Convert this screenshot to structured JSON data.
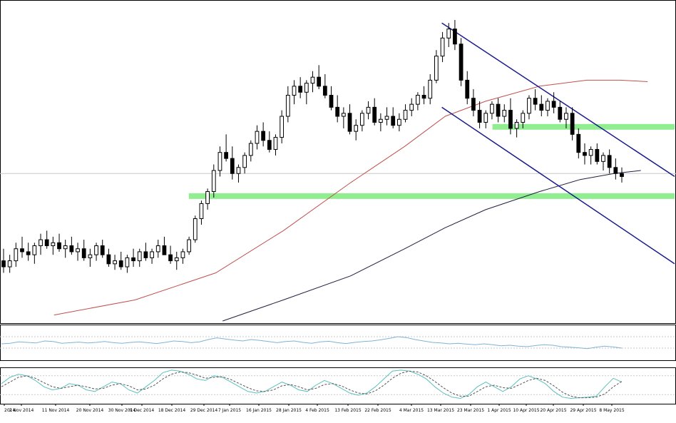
{
  "colors": {
    "background": "#ffffff",
    "frame": "#000000",
    "candle_bull": "#ffffff",
    "candle_bear": "#000000",
    "ma_fast": "#c0504d",
    "ma_slow": "#202040",
    "channel": "#1a1a8c",
    "zone": "#90ee90",
    "price_line": "#c8c8c8",
    "rsi": "#7fb3d5",
    "stoch_main": "#5bc0be",
    "stoch_signal": "#555555",
    "level": "#c8c8c8"
  },
  "chart_data": [
    {
      "type": "candlestick",
      "title": "",
      "x_ticks": [
        "2014",
        "2 Nov 2014",
        "11 Nov 2014",
        "20 Nov 2014",
        "30 Nov 2014",
        "9 Dec 2014",
        "18 Dec 2014",
        "29 Dec 2014",
        "7 Jan 2015",
        "16 Jan 2015",
        "28 Jan 2015",
        "4 Feb 2015",
        "13 Feb 2015",
        "22 Feb 2015",
        "4 Mar 2015",
        "13 Mar 2015",
        "23 Mar 2015",
        "1 Apr 2015",
        "10 Apr 2015",
        "20 Apr 2015",
        "29 Apr 2015",
        "8 May 2015"
      ],
      "y_range": [
        0,
        100
      ],
      "ohlc": [
        [
          20,
          24,
          16,
          18
        ],
        [
          18,
          22,
          16,
          20
        ],
        [
          20,
          26,
          18,
          24
        ],
        [
          24,
          28,
          21,
          23
        ],
        [
          23,
          26,
          20,
          22
        ],
        [
          22,
          26,
          19,
          25
        ],
        [
          25,
          29,
          22,
          27
        ],
        [
          27,
          30,
          24,
          25
        ],
        [
          25,
          28,
          22,
          26
        ],
        [
          26,
          29,
          23,
          24
        ],
        [
          24,
          27,
          21,
          25
        ],
        [
          25,
          28,
          22,
          23
        ],
        [
          23,
          26,
          20,
          24
        ],
        [
          24,
          27,
          20,
          21
        ],
        [
          21,
          24,
          18,
          22
        ],
        [
          22,
          26,
          20,
          25
        ],
        [
          25,
          27,
          21,
          22
        ],
        [
          22,
          24,
          18,
          19
        ],
        [
          19,
          22,
          17,
          20
        ],
        [
          20,
          23,
          17,
          18
        ],
        [
          18,
          22,
          16,
          21
        ],
        [
          21,
          24,
          18,
          20
        ],
        [
          20,
          24,
          18,
          23
        ],
        [
          23,
          26,
          20,
          21
        ],
        [
          21,
          24,
          19,
          23
        ],
        [
          23,
          27,
          21,
          25
        ],
        [
          25,
          28,
          22,
          22
        ],
        [
          22,
          25,
          19,
          20
        ],
        [
          20,
          23,
          17,
          21
        ],
        [
          21,
          24,
          19,
          23
        ],
        [
          23,
          28,
          22,
          27
        ],
        [
          27,
          35,
          26,
          34
        ],
        [
          34,
          40,
          32,
          39
        ],
        [
          39,
          44,
          37,
          43
        ],
        [
          43,
          52,
          41,
          50
        ],
        [
          50,
          58,
          48,
          56
        ],
        [
          56,
          62,
          53,
          54
        ],
        [
          54,
          58,
          47,
          49
        ],
        [
          49,
          52,
          46,
          51
        ],
        [
          51,
          56,
          49,
          55
        ],
        [
          55,
          60,
          53,
          59
        ],
        [
          59,
          65,
          57,
          63
        ],
        [
          63,
          66,
          58,
          60
        ],
        [
          60,
          63,
          56,
          57
        ],
        [
          57,
          62,
          55,
          61
        ],
        [
          61,
          70,
          59,
          68
        ],
        [
          68,
          78,
          66,
          75
        ],
        [
          75,
          80,
          72,
          78
        ],
        [
          78,
          81,
          74,
          76
        ],
        [
          76,
          80,
          72,
          79
        ],
        [
          79,
          83,
          76,
          81
        ],
        [
          81,
          85,
          77,
          78
        ],
        [
          78,
          82,
          74,
          75
        ],
        [
          75,
          78,
          70,
          71
        ],
        [
          71,
          75,
          66,
          68
        ],
        [
          68,
          71,
          64,
          69
        ],
        [
          69,
          72,
          62,
          63
        ],
        [
          63,
          67,
          60,
          65
        ],
        [
          65,
          70,
          63,
          69
        ],
        [
          69,
          73,
          67,
          71
        ],
        [
          71,
          74,
          65,
          66
        ],
        [
          66,
          69,
          63,
          67
        ],
        [
          67,
          71,
          65,
          68
        ],
        [
          68,
          71,
          64,
          65
        ],
        [
          65,
          69,
          63,
          67
        ],
        [
          67,
          72,
          66,
          70
        ],
        [
          70,
          74,
          68,
          72
        ],
        [
          72,
          76,
          70,
          75
        ],
        [
          75,
          78,
          72,
          74
        ],
        [
          74,
          82,
          72,
          80
        ],
        [
          80,
          90,
          79,
          88
        ],
        [
          88,
          96,
          86,
          94
        ],
        [
          94,
          99,
          91,
          97
        ],
        [
          97,
          100,
          90,
          92
        ],
        [
          92,
          94,
          78,
          80
        ],
        [
          80,
          83,
          72,
          74
        ],
        [
          74,
          77,
          68,
          70
        ],
        [
          70,
          73,
          64,
          66
        ],
        [
          66,
          70,
          64,
          69
        ],
        [
          69,
          73,
          67,
          72
        ],
        [
          72,
          74,
          66,
          68
        ],
        [
          68,
          72,
          66,
          70
        ],
        [
          70,
          74,
          62,
          64
        ],
        [
          64,
          67,
          61,
          66
        ],
        [
          66,
          70,
          64,
          69
        ],
        [
          69,
          75,
          67,
          74
        ],
        [
          74,
          77,
          70,
          72
        ],
        [
          72,
          75,
          68,
          70
        ],
        [
          70,
          74,
          68,
          73
        ],
        [
          73,
          76,
          69,
          71
        ],
        [
          71,
          73,
          66,
          67
        ],
        [
          67,
          71,
          64,
          69
        ],
        [
          69,
          71,
          60,
          62
        ],
        [
          62,
          64,
          54,
          56
        ],
        [
          56,
          59,
          52,
          55
        ],
        [
          55,
          58,
          52,
          57
        ],
        [
          57,
          59,
          52,
          53
        ],
        [
          53,
          56,
          50,
          55
        ],
        [
          55,
          57,
          49,
          51
        ],
        [
          51,
          54,
          47,
          49
        ],
        [
          49,
          51,
          46,
          48
        ]
      ],
      "ma_fast": [
        {
          "x": 0.08,
          "y": 2
        },
        {
          "x": 0.2,
          "y": 7
        },
        {
          "x": 0.32,
          "y": 16
        },
        {
          "x": 0.42,
          "y": 30
        },
        {
          "x": 0.52,
          "y": 46
        },
        {
          "x": 0.6,
          "y": 58
        },
        {
          "x": 0.66,
          "y": 68
        },
        {
          "x": 0.72,
          "y": 73
        },
        {
          "x": 0.8,
          "y": 78
        },
        {
          "x": 0.87,
          "y": 80
        },
        {
          "x": 0.92,
          "y": 80
        },
        {
          "x": 0.96,
          "y": 79.5
        }
      ],
      "ma_slow": [
        {
          "x": 0.33,
          "y": 0
        },
        {
          "x": 0.42,
          "y": 7
        },
        {
          "x": 0.52,
          "y": 15
        },
        {
          "x": 0.6,
          "y": 24
        },
        {
          "x": 0.66,
          "y": 31
        },
        {
          "x": 0.72,
          "y": 37
        },
        {
          "x": 0.8,
          "y": 43
        },
        {
          "x": 0.86,
          "y": 47
        },
        {
          "x": 0.91,
          "y": 49
        },
        {
          "x": 0.95,
          "y": 50
        }
      ],
      "channel_upper": [
        {
          "x": 0.655,
          "y": 99
        },
        {
          "x": 1.0,
          "y": 48
        }
      ],
      "channel_lower": [
        {
          "x": 0.655,
          "y": 71
        },
        {
          "x": 1.0,
          "y": 19
        }
      ],
      "zones": [
        {
          "x_start": 0.73,
          "x_end": 1.0,
          "y": 64.5
        },
        {
          "x_start": 0.28,
          "x_end": 1.0,
          "y": 41.5
        }
      ],
      "price_line": 49,
      "grid": false,
      "legend": ""
    },
    {
      "type": "line",
      "title": "",
      "y_range": [
        0,
        100
      ],
      "levels": [
        70,
        30
      ],
      "series": [
        {
          "values": [
            45,
            47,
            52,
            50,
            48,
            55,
            53,
            47,
            49,
            51,
            48,
            50,
            53,
            49,
            47,
            50,
            52,
            49,
            46,
            50,
            55,
            53,
            49,
            52,
            60,
            66,
            62,
            58,
            55,
            60,
            57,
            53,
            49,
            53,
            55,
            50,
            47,
            52,
            54,
            49,
            46,
            50,
            53,
            55,
            59,
            64,
            70,
            67,
            60,
            55,
            50,
            48,
            45,
            47,
            44,
            42,
            45,
            42,
            38,
            40,
            37,
            35,
            39,
            42,
            40,
            35,
            33,
            31,
            28,
            33,
            37,
            34,
            30
          ]
        }
      ]
    },
    {
      "type": "line",
      "title": "",
      "y_range": [
        0,
        100
      ],
      "levels": [
        80,
        20
      ],
      "series": [
        {
          "values": [
            55,
            75,
            85,
            80,
            65,
            45,
            35,
            40,
            55,
            50,
            35,
            30,
            45,
            60,
            55,
            35,
            25,
            45,
            65,
            90,
            98,
            95,
            85,
            70,
            65,
            80,
            75,
            60,
            45,
            30,
            25,
            30,
            45,
            60,
            50,
            35,
            30,
            50,
            65,
            55,
            40,
            25,
            18,
            25,
            45,
            70,
            95,
            98,
            95,
            85,
            70,
            45,
            25,
            12,
            8,
            20,
            45,
            60,
            45,
            30,
            45,
            70,
            80,
            70,
            55,
            30,
            12,
            8,
            10,
            12,
            15,
            45,
            72,
            60
          ]
        },
        {
          "values": [
            45,
            60,
            75,
            80,
            72,
            58,
            45,
            40,
            45,
            50,
            45,
            38,
            40,
            50,
            55,
            48,
            35,
            38,
            50,
            70,
            85,
            92,
            90,
            82,
            72,
            75,
            77,
            68,
            55,
            42,
            32,
            30,
            35,
            48,
            52,
            45,
            35,
            40,
            52,
            55,
            48,
            35,
            25,
            22,
            32,
            50,
            72,
            88,
            95,
            92,
            80,
            62,
            42,
            25,
            15,
            15,
            30,
            45,
            50,
            42,
            40,
            52,
            65,
            72,
            65,
            48,
            28,
            15,
            10,
            10,
            12,
            22,
            45,
            62
          ]
        }
      ]
    }
  ]
}
